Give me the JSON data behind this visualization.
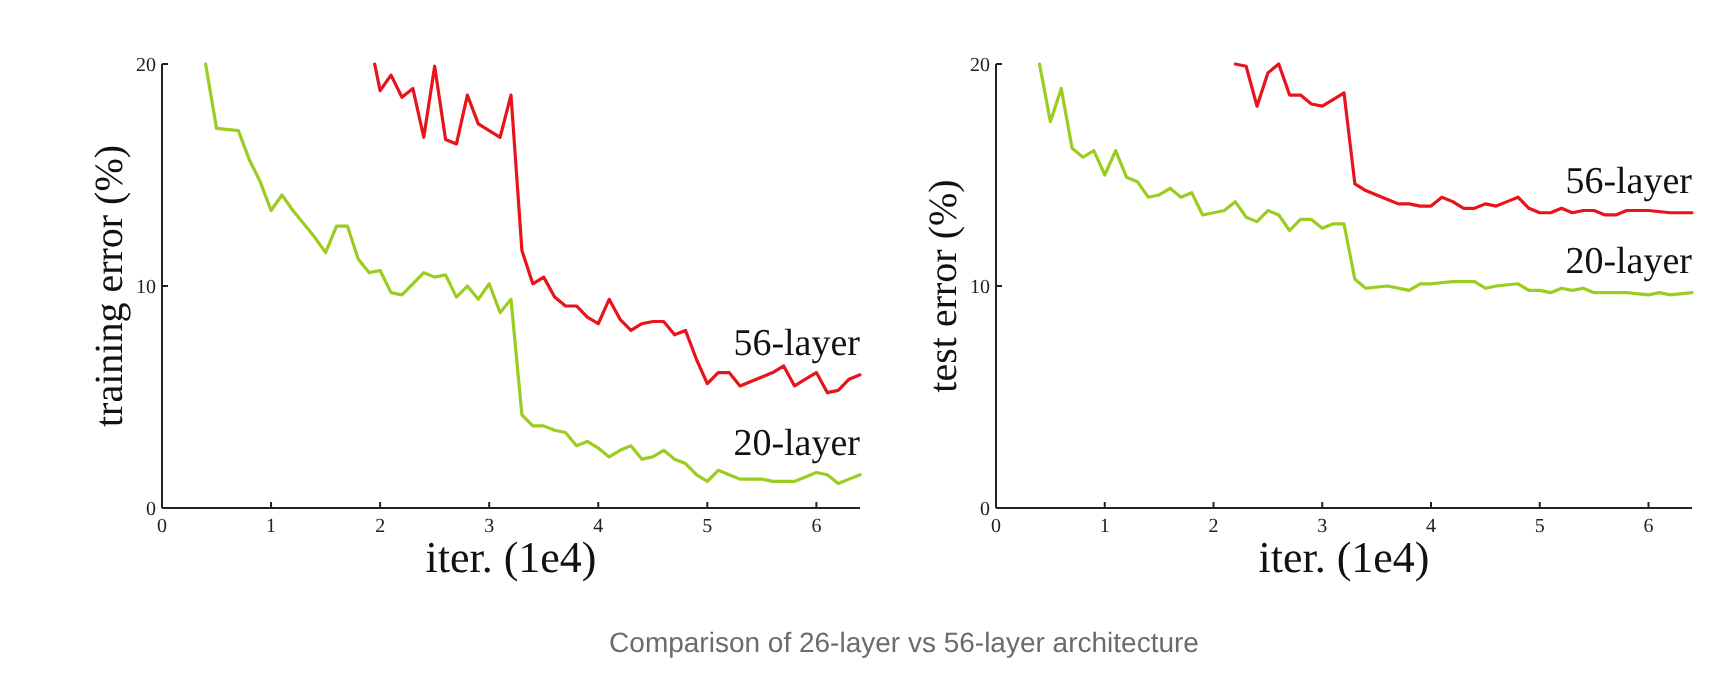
{
  "chart_data": [
    {
      "type": "line",
      "xlabel": "iter. (1e4)",
      "ylabel": "training error (%)",
      "xlim": [
        0,
        6.4
      ],
      "xticks": [
        0,
        1,
        2,
        3,
        4,
        5,
        6
      ],
      "ylim": [
        0,
        20
      ],
      "yticks": [
        0,
        10,
        20
      ],
      "annotations": [
        "Comparison of 26-layer vs 56-layer architecture"
      ],
      "series": [
        {
          "name": "56-layer",
          "color": "#e8141b",
          "x": [
            1.95,
            2.0,
            2.1,
            2.2,
            2.3,
            2.4,
            2.5,
            2.6,
            2.7,
            2.8,
            2.9,
            3.0,
            3.1,
            3.2,
            3.3,
            3.4,
            3.5,
            3.6,
            3.7,
            3.8,
            3.9,
            4.0,
            4.1,
            4.2,
            4.3,
            4.4,
            4.5,
            4.6,
            4.7,
            4.8,
            4.9,
            5.0,
            5.1,
            5.2,
            5.3,
            5.4,
            5.5,
            5.6,
            5.7,
            5.8,
            5.9,
            6.0,
            6.1,
            6.2,
            6.3,
            6.4
          ],
          "values": [
            20.0,
            18.8,
            19.5,
            18.5,
            18.9,
            16.7,
            19.9,
            16.6,
            16.4,
            18.6,
            17.3,
            17.0,
            16.7,
            18.6,
            11.6,
            10.1,
            10.4,
            9.5,
            9.1,
            9.1,
            8.6,
            8.3,
            9.4,
            8.5,
            8.0,
            8.3,
            8.4,
            8.4,
            7.8,
            8.0,
            6.7,
            5.6,
            6.1,
            6.1,
            5.5,
            5.7,
            5.9,
            6.1,
            6.4,
            5.5,
            5.8,
            6.1,
            5.2,
            5.3,
            5.8,
            6.0
          ]
        },
        {
          "name": "20-layer",
          "color": "#9acd20",
          "x": [
            0.4,
            0.5,
            0.7,
            0.8,
            0.9,
            1.0,
            1.1,
            1.2,
            1.3,
            1.4,
            1.5,
            1.6,
            1.7,
            1.8,
            1.9,
            2.0,
            2.1,
            2.2,
            2.3,
            2.4,
            2.5,
            2.6,
            2.7,
            2.8,
            2.9,
            3.0,
            3.1,
            3.2,
            3.3,
            3.4,
            3.5,
            3.6,
            3.7,
            3.8,
            3.9,
            4.0,
            4.1,
            4.2,
            4.3,
            4.4,
            4.5,
            4.6,
            4.7,
            4.8,
            4.9,
            5.0,
            5.1,
            5.2,
            5.3,
            5.4,
            5.5,
            5.6,
            5.8,
            5.9,
            6.0,
            6.1,
            6.2,
            6.3,
            6.4
          ],
          "values": [
            20,
            17.1,
            17.0,
            15.7,
            14.7,
            13.4,
            14.1,
            13.4,
            12.8,
            12.2,
            11.5,
            12.7,
            12.7,
            11.2,
            10.6,
            10.7,
            9.7,
            9.6,
            10.1,
            10.6,
            10.4,
            10.5,
            9.5,
            10.0,
            9.4,
            10.1,
            8.8,
            9.4,
            4.2,
            3.7,
            3.7,
            3.5,
            3.4,
            2.8,
            3.0,
            2.7,
            2.3,
            2.6,
            2.8,
            2.2,
            2.3,
            2.6,
            2.2,
            2.0,
            1.5,
            1.2,
            1.7,
            1.5,
            1.3,
            1.3,
            1.3,
            1.2,
            1.2,
            1.4,
            1.6,
            1.5,
            1.1,
            1.3,
            1.5
          ]
        }
      ]
    },
    {
      "type": "line",
      "xlabel": "iter. (1e4)",
      "ylabel": "test error (%)",
      "xlim": [
        0,
        6.4
      ],
      "xticks": [
        0,
        1,
        2,
        3,
        4,
        5,
        6
      ],
      "ylim": [
        0,
        20
      ],
      "yticks": [
        0,
        10,
        20
      ],
      "series": [
        {
          "name": "56-layer",
          "color": "#e8141b",
          "x": [
            2.2,
            2.3,
            2.4,
            2.5,
            2.6,
            2.7,
            2.8,
            2.9,
            3.0,
            3.1,
            3.2,
            3.3,
            3.4,
            3.5,
            3.6,
            3.7,
            3.8,
            3.9,
            4.0,
            4.1,
            4.2,
            4.3,
            4.4,
            4.5,
            4.6,
            4.7,
            4.8,
            4.9,
            5.0,
            5.1,
            5.2,
            5.3,
            5.4,
            5.5,
            5.6,
            5.7,
            5.8,
            6.0,
            6.2,
            6.4
          ],
          "values": [
            20.0,
            19.9,
            18.1,
            19.6,
            20.0,
            18.6,
            18.6,
            18.2,
            18.1,
            18.4,
            18.7,
            14.6,
            14.3,
            14.1,
            13.9,
            13.7,
            13.7,
            13.6,
            13.6,
            14.0,
            13.8,
            13.5,
            13.5,
            13.7,
            13.6,
            13.8,
            14.0,
            13.5,
            13.3,
            13.3,
            13.5,
            13.3,
            13.4,
            13.4,
            13.2,
            13.2,
            13.4,
            13.4,
            13.3,
            13.3
          ]
        },
        {
          "name": "20-layer",
          "color": "#9acd20",
          "x": [
            0.4,
            0.5,
            0.6,
            0.7,
            0.8,
            0.9,
            1.0,
            1.1,
            1.2,
            1.3,
            1.4,
            1.5,
            1.6,
            1.7,
            1.8,
            1.9,
            2.0,
            2.1,
            2.2,
            2.3,
            2.4,
            2.5,
            2.6,
            2.7,
            2.8,
            2.9,
            3.0,
            3.1,
            3.2,
            3.3,
            3.4,
            3.6,
            3.8,
            3.9,
            4.0,
            4.2,
            4.4,
            4.5,
            4.6,
            4.8,
            4.9,
            5.0,
            5.1,
            5.2,
            5.3,
            5.4,
            5.5,
            5.8,
            6.0,
            6.1,
            6.2,
            6.4
          ],
          "values": [
            20,
            17.4,
            18.9,
            16.2,
            15.8,
            16.1,
            15.0,
            16.1,
            14.9,
            14.7,
            14.0,
            14.1,
            14.4,
            14.0,
            14.2,
            13.2,
            13.3,
            13.4,
            13.8,
            13.1,
            12.9,
            13.4,
            13.2,
            12.5,
            13.0,
            13.0,
            12.6,
            12.8,
            12.8,
            10.3,
            9.9,
            10.0,
            9.8,
            10.1,
            10.1,
            10.2,
            10.2,
            9.9,
            10.0,
            10.1,
            9.8,
            9.8,
            9.7,
            9.9,
            9.8,
            9.9,
            9.7,
            9.7,
            9.6,
            9.7,
            9.6,
            9.7
          ]
        }
      ]
    }
  ]
}
